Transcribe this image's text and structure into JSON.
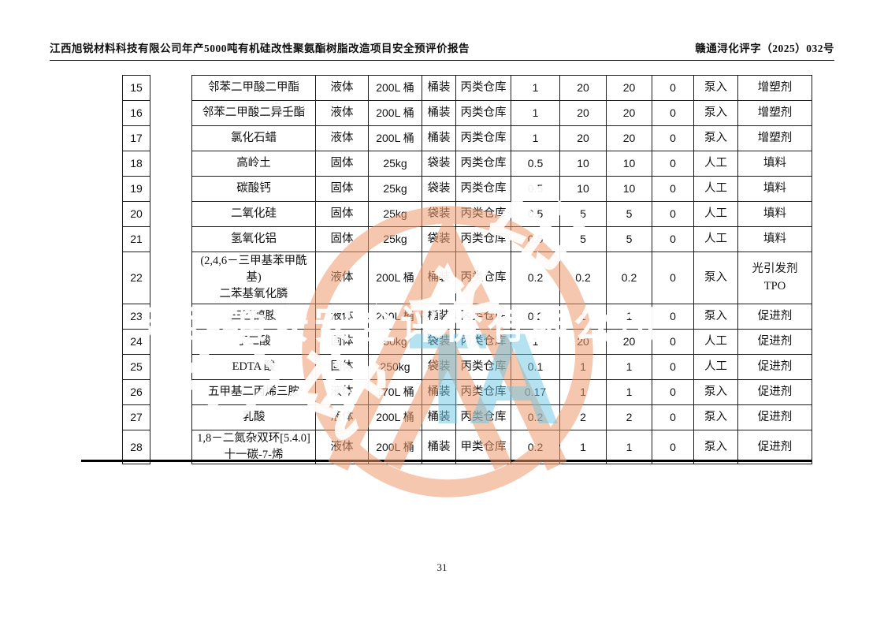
{
  "page": {
    "header_left": "江西旭锐材料科技有限公司年产5000吨有机硅改性聚氨酯树脂改造项目安全预评价报告",
    "header_right": "赣通浔化评字（2025）032号",
    "page_number": "31"
  },
  "watermark": {
    "company_text": "江西通安安全评价有限公司",
    "overlay_char_1": "印",
    "overlay_char_2": "水",
    "overlay_char_3": "试",
    "logo_text": "TA",
    "stamp_color": "#f09a6e",
    "logo_color": "#69c6e4"
  },
  "table": {
    "rows": [
      {
        "num": "15",
        "name": "邻苯二甲酸二甲酯",
        "state": "液体",
        "size": "200L 桶",
        "pack": "桶装",
        "store": "丙类仓库",
        "q1": "1",
        "q2": "20",
        "q3": "20",
        "q4": "0",
        "feed": "泵入",
        "use": "增塑剂"
      },
      {
        "num": "16",
        "name": "邻苯二甲酸二异壬酯",
        "state": "液体",
        "size": "200L 桶",
        "pack": "桶装",
        "store": "丙类仓库",
        "q1": "1",
        "q2": "20",
        "q3": "20",
        "q4": "0",
        "feed": "泵入",
        "use": "增塑剂"
      },
      {
        "num": "17",
        "name": "氯化石蜡",
        "state": "液体",
        "size": "200L 桶",
        "pack": "桶装",
        "store": "丙类仓库",
        "q1": "1",
        "q2": "20",
        "q3": "20",
        "q4": "0",
        "feed": "泵入",
        "use": "增塑剂"
      },
      {
        "num": "18",
        "name": "高岭土",
        "state": "固体",
        "size": "25kg",
        "pack": "袋装",
        "store": "丙类仓库",
        "q1": "0.5",
        "q2": "10",
        "q3": "10",
        "q4": "0",
        "feed": "人工",
        "use": "填料"
      },
      {
        "num": "19",
        "name": "碳酸钙",
        "state": "固体",
        "size": "25kg",
        "pack": "袋装",
        "store": "丙类仓库",
        "q1": "0.5",
        "q2": "10",
        "q3": "10",
        "q4": "0",
        "feed": "人工",
        "use": "填料"
      },
      {
        "num": "20",
        "name": "二氧化硅",
        "state": "固体",
        "size": "25kg",
        "pack": "袋装",
        "store": "丙类仓库",
        "q1": "0.5",
        "q2": "5",
        "q3": "5",
        "q4": "0",
        "feed": "人工",
        "use": "填料"
      },
      {
        "num": "21",
        "name": "氢氧化铝",
        "state": "固体",
        "size": "25kg",
        "pack": "袋装",
        "store": "丙类仓库",
        "q1": "0.5",
        "q2": "5",
        "q3": "5",
        "q4": "0",
        "feed": "人工",
        "use": "填料"
      },
      {
        "num": "22",
        "name": "(2,4,6－三甲基苯甲酰基)\n二苯基氧化膦",
        "state": "液体",
        "size": "200L 桶",
        "pack": "桶装",
        "store": "丙类仓库",
        "q1": "0.2",
        "q2": "0.2",
        "q3": "0.2",
        "q4": "0",
        "feed": "泵入",
        "use": "光引发剂\nTPO"
      },
      {
        "num": "23",
        "name": "三乙醇胺",
        "state": "液体",
        "size": "200L 桶",
        "pack": "桶装",
        "store": "丙类仓库",
        "q1": "0.2",
        "q2": "1",
        "q3": "1",
        "q4": "0",
        "feed": "泵入",
        "use": "促进剂"
      },
      {
        "num": "24",
        "name": "丁二酸",
        "state": "固体",
        "size": "50kg",
        "pack": "袋装",
        "store": "丙类仓库",
        "q1": "1",
        "q2": "20",
        "q3": "20",
        "q4": "0",
        "feed": "人工",
        "use": "促进剂"
      },
      {
        "num": "25",
        "name": "EDTA 酸",
        "state": "固体",
        "size": "250kg",
        "pack": "袋装",
        "store": "丙类仓库",
        "q1": "0.1",
        "q2": "1",
        "q3": "1",
        "q4": "0",
        "feed": "人工",
        "use": "促进剂"
      },
      {
        "num": "26",
        "name": "五甲基二丙烯三胺",
        "state": "液体",
        "size": "170L 桶",
        "pack": "桶装",
        "store": "丙类仓库",
        "q1": "0.17",
        "q2": "1",
        "q3": "1",
        "q4": "0",
        "feed": "泵入",
        "use": "促进剂"
      },
      {
        "num": "27",
        "name": "乳酸",
        "state": "液体",
        "size": "200L 桶",
        "pack": "桶装",
        "store": "丙类仓库",
        "q1": "0.2",
        "q2": "2",
        "q3": "2",
        "q4": "0",
        "feed": "泵入",
        "use": "促进剂"
      },
      {
        "num": "28",
        "name": "1,8－二氮杂双环[5.4.0]\n十一碳-7-烯",
        "state": "液体",
        "size": "200L 桶",
        "pack": "桶装",
        "store": "甲类仓库",
        "q1": "0.2",
        "q2": "1",
        "q3": "1",
        "q4": "0",
        "feed": "泵入",
        "use": "促进剂"
      }
    ]
  }
}
